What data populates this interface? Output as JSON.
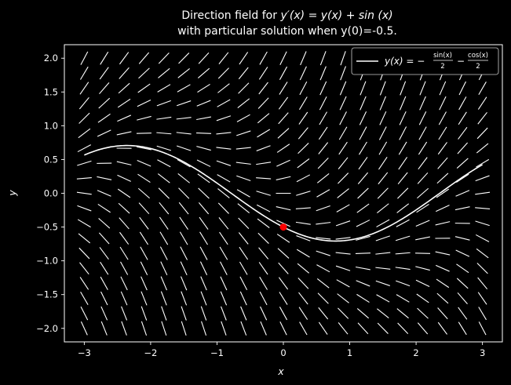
{
  "chart_data": {
    "type": "direction-field",
    "title_line1": "Direction field for ",
    "title_eq": "y′(x) = y(x) + sin (x)",
    "title_line2": "with particular solution when y(0)=-0.5.",
    "xlabel": "x",
    "ylabel": "y",
    "xlim": [
      -3.3,
      3.3
    ],
    "ylim": [
      -2.2,
      2.2
    ],
    "xticks": [
      -3,
      -2,
      -1,
      0,
      1,
      2,
      3
    ],
    "xtick_labels": [
      "−3",
      "−2",
      "−1",
      "0",
      "1",
      "2",
      "3"
    ],
    "yticks": [
      -2.0,
      -1.5,
      -1.0,
      -0.5,
      0.0,
      0.5,
      1.0,
      1.5,
      2.0
    ],
    "ytick_labels": [
      "−2.0",
      "−1.5",
      "−1.0",
      "−0.5",
      "0.0",
      "0.5",
      "1.0",
      "1.5",
      "2.0"
    ],
    "field": {
      "x_min": -3.0,
      "x_max": 3.0,
      "nx": 21,
      "y_min": -2.0,
      "y_max": 2.0,
      "ny": 19,
      "slope_formula": "y + sin(x)"
    },
    "solution": {
      "formula": "-sin(x)/2 - cos(x)/2",
      "x_range": [
        -3.0,
        3.0
      ],
      "color": "#ffffff"
    },
    "initial_point": {
      "x": 0,
      "y": -0.5,
      "color": "#ff0000"
    },
    "legend": {
      "location": "top-right",
      "label_prefix": "y(x) = −",
      "frac1_num": "sin(x)",
      "frac1_den": "2",
      "minus": "−",
      "frac2_num": "cos(x)",
      "frac2_den": "2"
    },
    "colors": {
      "background": "#000000",
      "foreground": "#ffffff",
      "point": "#ff0000"
    }
  }
}
